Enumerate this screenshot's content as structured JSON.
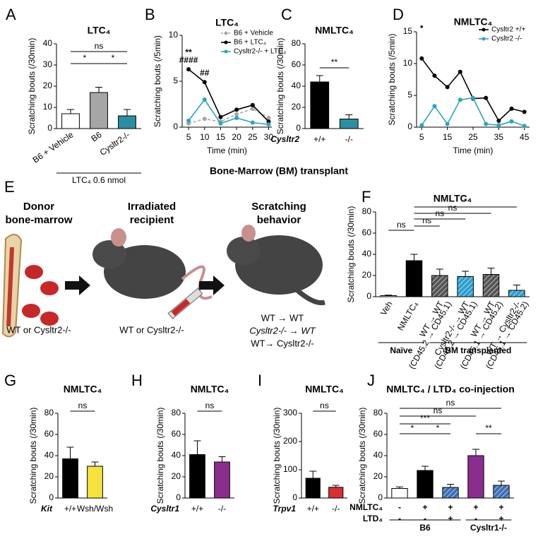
{
  "chart_data": [
    {
      "type": "bar",
      "panel": "A",
      "title": "LTC₄",
      "y_label": "Scratching bouts (/30min)",
      "categories": [
        "B6 + Vehicle",
        "B6",
        "Cysltr2-/-"
      ],
      "values": [
        7,
        17,
        6
      ],
      "errors": [
        2,
        2.5,
        3
      ],
      "colors": [
        "#ffffff",
        "#a6a6a6",
        "#2a8fa0"
      ],
      "ylim": [
        0,
        40
      ],
      "yticks": [
        0,
        10,
        20,
        30,
        40
      ],
      "annotations": [
        "ns",
        "*",
        "*"
      ],
      "note": "LTC₄ 0.6 nmol"
    },
    {
      "type": "line",
      "panel": "B",
      "title": "LTC₄",
      "y_label": "Scratching bouts (/5min)",
      "x_label": "Time (min)",
      "x": [
        5,
        10,
        15,
        20,
        25,
        30
      ],
      "xlim": [
        3,
        31
      ],
      "xticks": [
        5,
        10,
        15,
        20,
        25,
        30
      ],
      "ylim": [
        0,
        10
      ],
      "yticks": [
        0,
        5,
        10
      ],
      "legend": "upper right",
      "series": [
        {
          "name": "B6 + Vehicle",
          "color": "#a6a6a6",
          "dashed": true,
          "values": [
            0.4,
            0.9,
            0.6,
            1.4,
            2.0,
            1.0
          ]
        },
        {
          "name": "B6 + LTC₄",
          "color": "#000000",
          "dashed": false,
          "values": [
            6.3,
            4.9,
            1.1,
            1.9,
            2.4,
            0.6
          ]
        },
        {
          "name": "Cysltr2-/- + LTC₄",
          "color": "#2aa5c0",
          "dashed": false,
          "values": [
            0.7,
            3.0,
            0.4,
            1.0,
            0.5,
            0.3
          ]
        }
      ],
      "annotations": [
        "**",
        "####",
        "##"
      ]
    },
    {
      "type": "bar",
      "panel": "C",
      "title": "NMLTC₄",
      "y_label": "Scratching bouts (/30min)",
      "genotype_label": "Cysltr2",
      "categories": [
        "+/+",
        "-/-"
      ],
      "values": [
        44,
        9
      ],
      "errors": [
        6,
        4
      ],
      "colors": [
        "#000000",
        "#2a8fa0"
      ],
      "ylim": [
        0,
        80
      ],
      "yticks": [
        0,
        20,
        40,
        60,
        80
      ],
      "annotations": [
        "**"
      ]
    },
    {
      "type": "line",
      "panel": "D",
      "title": "NMLTC₄",
      "y_label": "Scratching bouts (/5min)",
      "x_label": "Time (min)",
      "x": [
        5,
        10,
        15,
        20,
        25,
        30,
        35,
        40,
        45
      ],
      "xlim": [
        3,
        47
      ],
      "xticks": [
        5,
        15,
        25,
        35,
        45
      ],
      "ylim": [
        0,
        15
      ],
      "yticks": [
        0,
        5,
        10,
        15
      ],
      "legend": "upper right",
      "series": [
        {
          "name": "Cysltr2 +/+",
          "color": "#000000",
          "dashed": false,
          "values": [
            10.8,
            8.1,
            6.3,
            8.7,
            4.5,
            4.6,
            1.0,
            2.9,
            2.4
          ]
        },
        {
          "name": "Cysltr2 -/-",
          "color": "#2aa5c0",
          "dashed": false,
          "values": [
            0.3,
            3.3,
            0.5,
            4.3,
            4.6,
            0.5,
            0.3,
            0.9,
            0.2
          ]
        }
      ],
      "annotations": [
        "*"
      ]
    },
    {
      "type": "bar",
      "panel": "F",
      "title": "NMLTC₄",
      "y_label": "Scratching bouts (/30min)",
      "categories": [
        "Veh",
        "NMLTC₄",
        "WT → WT",
        "Cysltr2-/- → WT",
        "WT → WT",
        "WT → Cysltr2-/-"
      ],
      "category_sublabels": [
        null,
        null,
        "(CD45.2 → CD45.1)",
        "(CD45.2 → CD45.1)",
        "(CD45.1 → CD45.2)",
        "(CD45.1 → CD45.2)"
      ],
      "values": [
        1,
        34,
        20,
        19,
        21,
        6
      ],
      "errors": [
        0.5,
        6,
        6,
        5,
        6,
        5
      ],
      "colors": [
        "#ffffff",
        "#000000",
        "#555555",
        "#2a9fd0",
        "#555555",
        "#2a9fd0"
      ],
      "hatched": [
        false,
        false,
        true,
        true,
        true,
        true
      ],
      "ylim": [
        0,
        80
      ],
      "yticks": [
        0,
        20,
        40,
        60,
        80
      ],
      "annotations": [
        "ns",
        "ns",
        "ns",
        "ns",
        "*"
      ],
      "groups": [
        "Naïve",
        "BM transplanted"
      ]
    },
    {
      "type": "bar",
      "panel": "G",
      "title": "NMLTC₄",
      "y_label": "Scratching bouts (/30min)",
      "genotype_label": "Kit",
      "categories": [
        "+/+",
        "Wsh/Wsh"
      ],
      "values": [
        37,
        30
      ],
      "errors": [
        11,
        4
      ],
      "colors": [
        "#000000",
        "#f5e23c"
      ],
      "ylim": [
        0,
        80
      ],
      "yticks": [
        0,
        20,
        40,
        60,
        80
      ],
      "annotations": [
        "ns"
      ]
    },
    {
      "type": "bar",
      "panel": "H",
      "title": "NMLTC₄",
      "y_label": "Scratching bouts (/30min)",
      "genotype_label": "Cysltr1",
      "categories": [
        "+/+",
        "-/-"
      ],
      "values": [
        41,
        34
      ],
      "errors": [
        13,
        5
      ],
      "colors": [
        "#000000",
        "#8b2c8f"
      ],
      "ylim": [
        0,
        80
      ],
      "yticks": [
        0,
        20,
        40,
        60,
        80
      ],
      "annotations": [
        "ns"
      ]
    },
    {
      "type": "bar",
      "panel": "I",
      "title": "NMLTC₄",
      "y_label": "Scratching bouts (/30min)",
      "genotype_label": "Trpv1",
      "categories": [
        "+/+",
        "-/-"
      ],
      "values": [
        70,
        38
      ],
      "errors": [
        25,
        7
      ],
      "colors": [
        "#000000",
        "#d8302f"
      ],
      "ylim": [
        0,
        300
      ],
      "yticks": [
        0,
        100,
        200,
        300
      ],
      "annotations": [
        "ns"
      ]
    },
    {
      "type": "bar",
      "panel": "J",
      "title": "NMLTC₄ / LTD₄ co-injection",
      "y_label": "Scratching bouts (/30min)",
      "values": [
        9,
        26,
        10,
        40,
        12
      ],
      "errors": [
        1.5,
        4,
        3,
        6,
        4
      ],
      "colors": [
        "#ffffff",
        "#000000",
        "#3b6fb5",
        "#8b2c8f",
        "#3b6fb5"
      ],
      "hatched": [
        false,
        false,
        true,
        false,
        true
      ],
      "ylim": [
        0,
        80
      ],
      "yticks": [
        0,
        20,
        40,
        60,
        80
      ],
      "rows": [
        {
          "name": "NMLTC₄",
          "signs": [
            "-",
            "+",
            "+",
            "+",
            "+"
          ]
        },
        {
          "name": "LTD₄",
          "signs": [
            "-",
            "-",
            "+",
            "-",
            "+"
          ]
        }
      ],
      "groups": [
        "B6",
        "Cysltr1-/-"
      ],
      "annotations": [
        "ns",
        "ns",
        "***",
        "*",
        "*",
        "**"
      ]
    }
  ],
  "diagram": {
    "panel": "E",
    "heading": "Bone-Marrow (BM) transplant",
    "steps": [
      {
        "title": [
          "Donor",
          "bone-marrow"
        ],
        "caption": [
          "WT or Cysltr2-/-"
        ]
      },
      {
        "title": [
          "Irradiated",
          "recipient"
        ],
        "caption": [
          "WT or Cysltr2-/-"
        ]
      },
      {
        "title": [
          "Scratching",
          "behavior"
        ],
        "caption": [
          "WT → WT",
          "Cysltr2-/- → WT",
          "WT→ Cysltr2-/-"
        ]
      }
    ]
  }
}
